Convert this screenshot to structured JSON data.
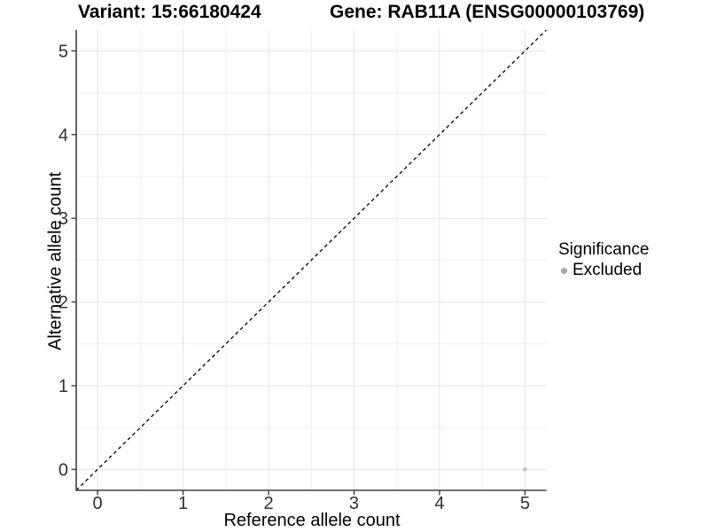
{
  "header": {
    "variant_title": "Variant: 15:66180424",
    "gene_title": "Gene: RAB11A (ENSG00000103769)"
  },
  "legend": {
    "title": "Significance",
    "items": [
      {
        "label": "Excluded",
        "color": "#a8a8a8"
      }
    ]
  },
  "chart_data": {
    "type": "scatter",
    "title": "Variant: 15:66180424  /  Gene: RAB11A (ENSG00000103769)",
    "xlabel": "Reference allele count",
    "ylabel": "Alternative allele count",
    "xlim": [
      -0.25,
      5.25
    ],
    "ylim": [
      -0.25,
      5.25
    ],
    "x_ticks": [
      0,
      1,
      2,
      3,
      4,
      5
    ],
    "y_ticks": [
      0,
      1,
      2,
      3,
      4,
      5
    ],
    "x_minor_ticks": [
      0.5,
      1.5,
      2.5,
      3.5,
      4.5
    ],
    "y_minor_ticks": [
      0.5,
      1.5,
      2.5,
      3.5,
      4.5
    ],
    "grid": true,
    "legend_position": "right",
    "series": [
      {
        "name": "Excluded",
        "points": [
          {
            "x": 5,
            "y": 0
          }
        ]
      }
    ],
    "identity_line": {
      "from": [
        -0.25,
        -0.25
      ],
      "to": [
        5.25,
        5.25
      ],
      "style": "dashed",
      "color": "#000000"
    },
    "style": {
      "major_grid": "#e4e4e4",
      "minor_grid": "#efefef",
      "axis_line": "#404040",
      "tick_color": "#404040",
      "tick_label_color": "#303030",
      "point_color": "#c0c0c0",
      "point_radius": 2.3
    }
  }
}
